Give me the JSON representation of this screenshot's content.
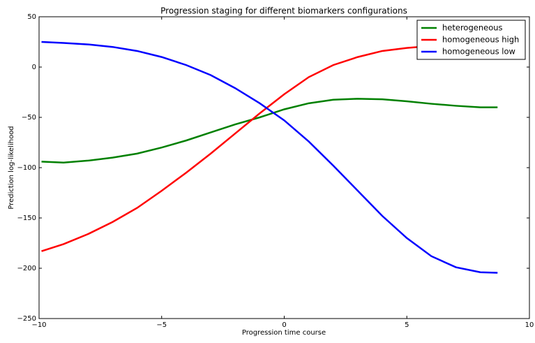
{
  "chart_data": {
    "type": "line",
    "title": "Progression staging for different biomarkers configurations",
    "xlabel": "Progression time course",
    "ylabel": "Prediction log-likelihood",
    "x": [
      -9.9,
      -9,
      -8,
      -7,
      -6,
      -5,
      -4,
      -3,
      -2,
      -1,
      0,
      1,
      2,
      3,
      4,
      5,
      6,
      7,
      8,
      8.7
    ],
    "series": [
      {
        "name": "heterogeneous",
        "color": "#008000",
        "values": [
          -94,
          -95,
          -93,
          -90,
          -86,
          -80,
          -73,
          -65,
          -57,
          -50,
          -42,
          -36,
          -32.5,
          -31.5,
          -32,
          -34,
          -36.5,
          -38.5,
          -40,
          -40
        ]
      },
      {
        "name": "homogeneous high",
        "color": "#ff0000",
        "values": [
          -183,
          -176,
          -166,
          -154,
          -140,
          -123,
          -105,
          -86,
          -66,
          -46,
          -27,
          -10,
          2,
          10,
          16,
          19,
          21,
          21,
          21,
          21
        ]
      },
      {
        "name": "homogeneous low",
        "color": "#0000ff",
        "values": [
          25,
          24,
          22.5,
          20,
          16,
          10,
          2,
          -8,
          -21,
          -36,
          -53,
          -74,
          -98,
          -123,
          -148,
          -170,
          -188,
          -199,
          -204,
          -204.5
        ]
      }
    ],
    "xlim": [
      -10,
      10
    ],
    "ylim": [
      -250,
      50
    ],
    "xticks": [
      {
        "value": -10,
        "label": "−10"
      },
      {
        "value": -5,
        "label": "−5"
      },
      0,
      5,
      10
    ],
    "yticks": [
      {
        "value": -250,
        "label": "−250"
      },
      {
        "value": -200,
        "label": "−200"
      },
      {
        "value": -150,
        "label": "−150"
      },
      {
        "value": -100,
        "label": "−100"
      },
      {
        "value": -50,
        "label": "−50"
      },
      0,
      50
    ],
    "legend": "upper right"
  }
}
